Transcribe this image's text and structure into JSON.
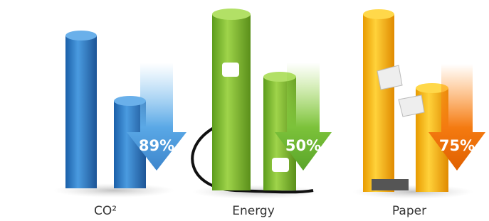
{
  "items": [
    {
      "label": "CO²",
      "reduction": "89%"
    },
    {
      "label": "Energy",
      "reduction": "50%"
    },
    {
      "label": "Paper",
      "reduction": "75%"
    }
  ]
}
